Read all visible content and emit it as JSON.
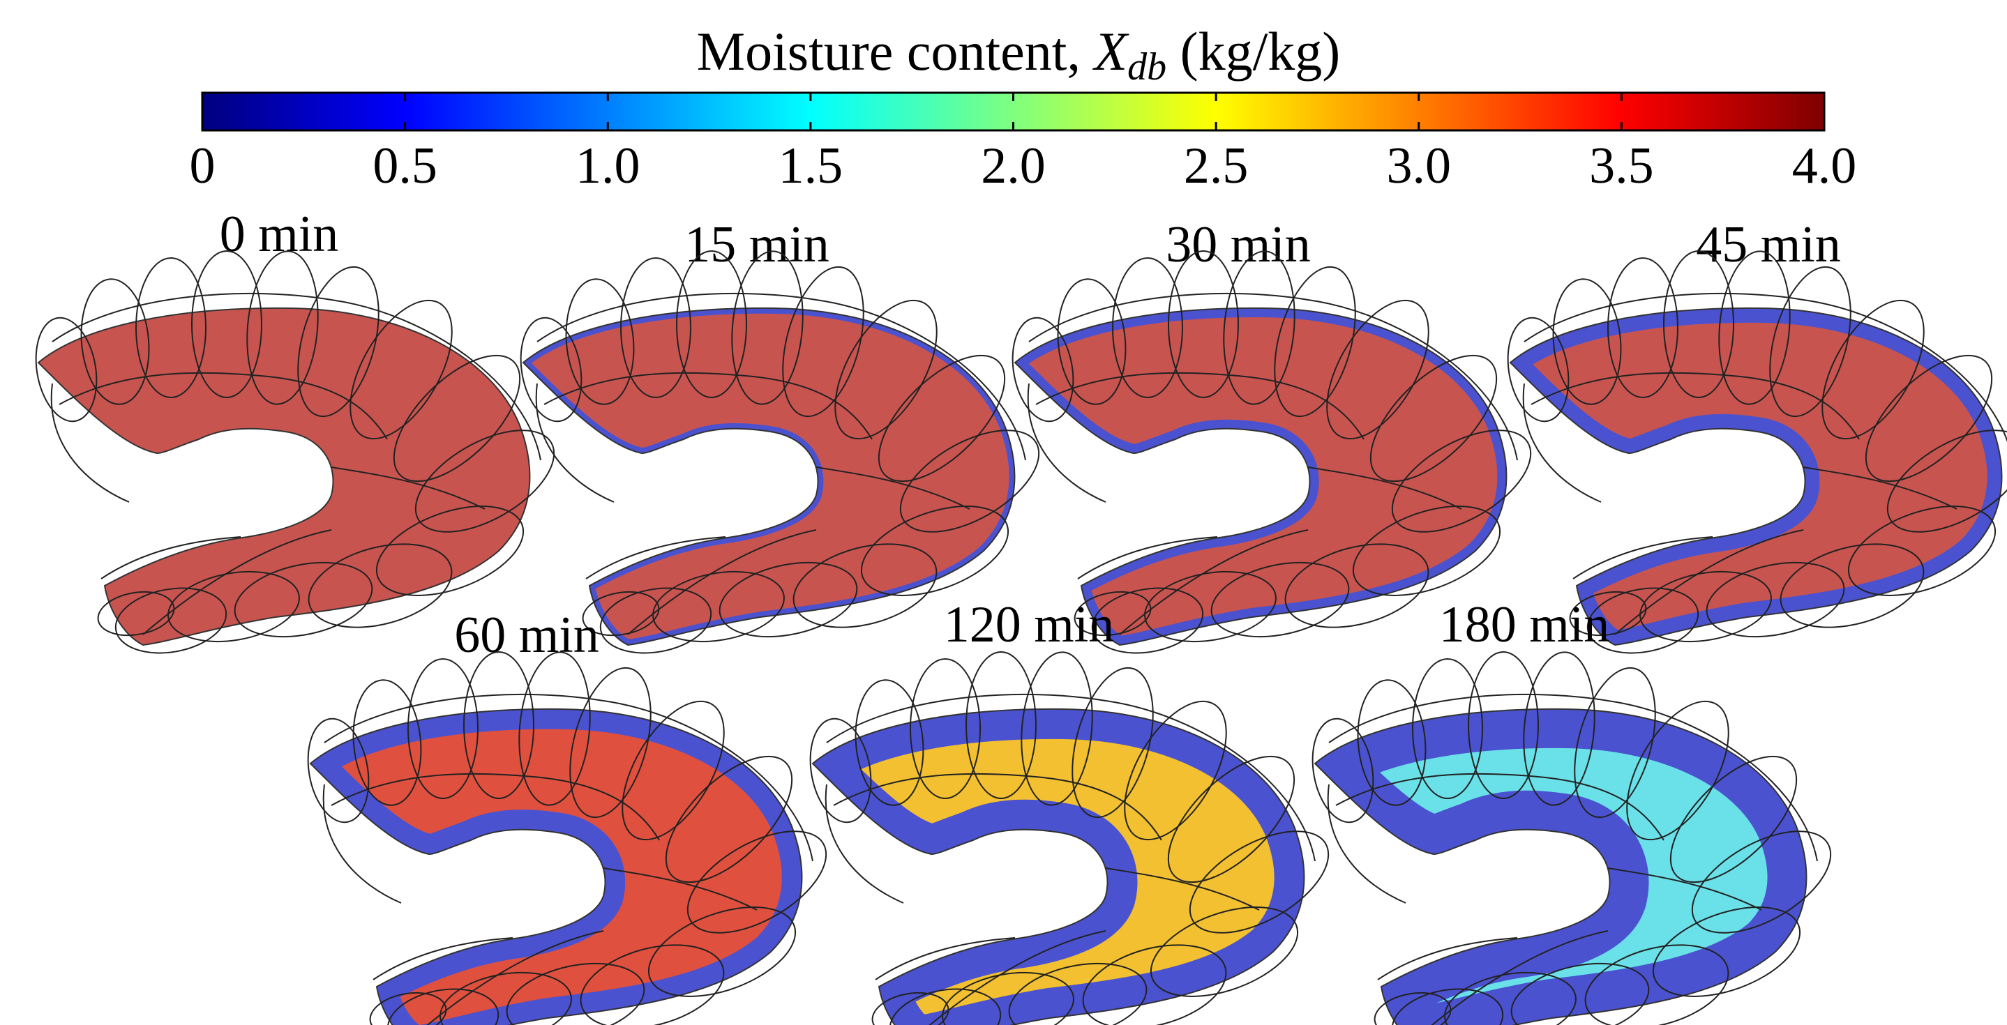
{
  "colorbar": {
    "title_main": "Moisture content, ",
    "title_var": "X",
    "title_sub": "db",
    "title_unit": " (kg/kg)",
    "min": 0,
    "max": 4.0,
    "ticks": [
      {
        "value": 0,
        "label": "0"
      },
      {
        "value": 0.5,
        "label": "0.5"
      },
      {
        "value": 1.0,
        "label": "1.0"
      },
      {
        "value": 1.5,
        "label": "1.5"
      },
      {
        "value": 2.0,
        "label": "2.0"
      },
      {
        "value": 2.5,
        "label": "2.5"
      },
      {
        "value": 3.0,
        "label": "3.0"
      },
      {
        "value": 3.5,
        "label": "3.5"
      },
      {
        "value": 4.0,
        "label": "4.0"
      }
    ],
    "colormap": "jet",
    "colors": [
      "#00007f",
      "#0000ff",
      "#007fff",
      "#00ffff",
      "#7fff7f",
      "#ffff00",
      "#ff7f00",
      "#ff0000",
      "#7f0000"
    ]
  },
  "panels": [
    {
      "label": "0 min",
      "time_min": 0,
      "core_color": "#c85450",
      "dry_fraction": 0.0
    },
    {
      "label": "15 min",
      "time_min": 15,
      "core_color": "#c85450",
      "dry_fraction": 0.06
    },
    {
      "label": "30 min",
      "time_min": 30,
      "core_color": "#c85450",
      "dry_fraction": 0.14
    },
    {
      "label": "45 min",
      "time_min": 45,
      "core_color": "#c85450",
      "dry_fraction": 0.26
    },
    {
      "label": "60 min",
      "time_min": 60,
      "core_color": "#e0503e",
      "dry_fraction": 0.38
    },
    {
      "label": "120 min",
      "time_min": 120,
      "core_color": "#f2c030",
      "dry_fraction": 0.6
    },
    {
      "label": "180 min",
      "time_min": 180,
      "core_color": "#6ae0e8",
      "dry_fraction": 0.8
    }
  ],
  "style": {
    "edge_color": "#4a52d0",
    "wire_color": "#222222"
  }
}
